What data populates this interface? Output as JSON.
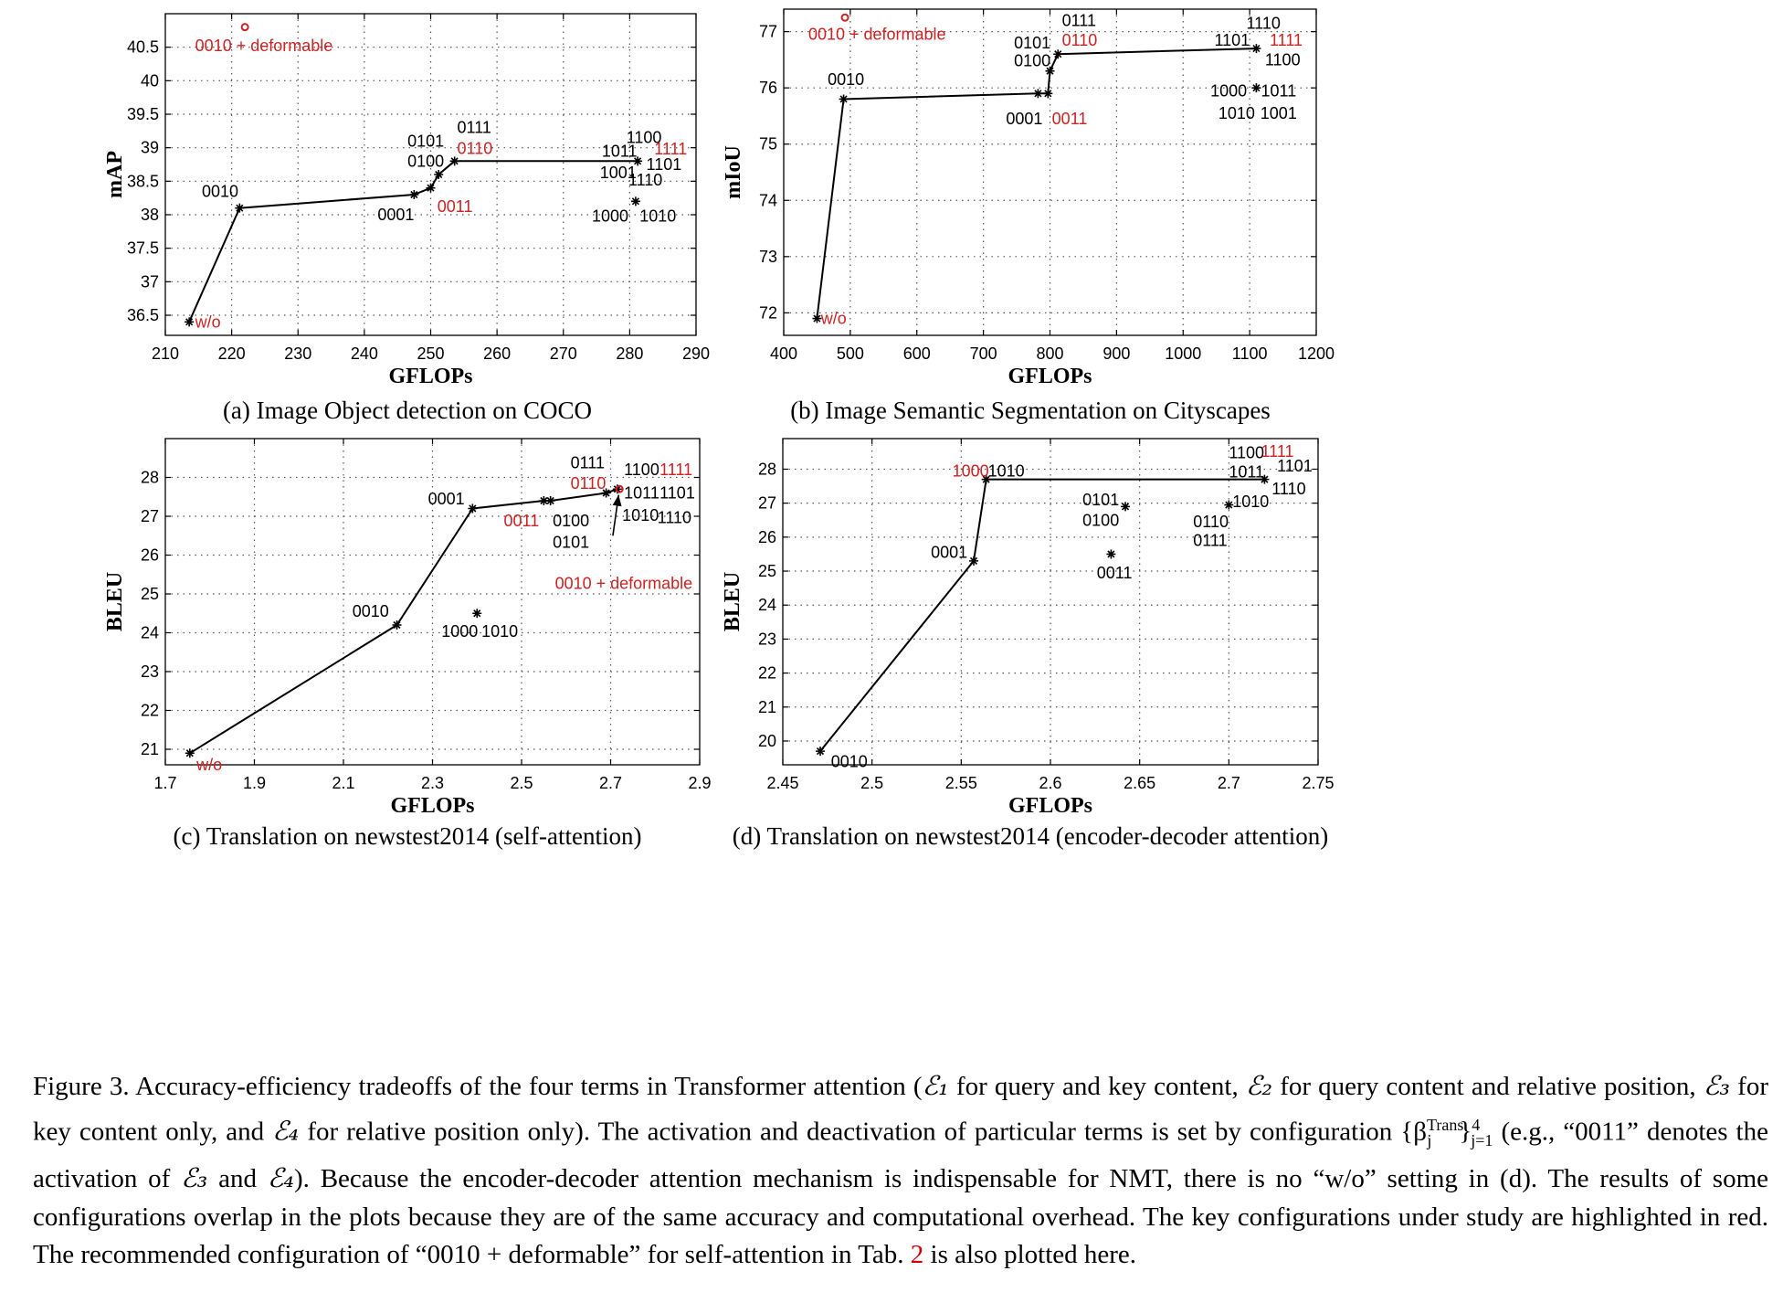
{
  "colors": {
    "red": "#cc2222",
    "black": "#000000",
    "grid": "#555555"
  },
  "chart_data": [
    {
      "type": "line",
      "caption": "(a)  Image Object detection on COCO",
      "xlabel": "GFLOPs",
      "ylabel": "mAP",
      "xlim": [
        210,
        290
      ],
      "ylim": [
        36.2,
        41.0
      ],
      "xticks": [
        210,
        220,
        230,
        240,
        250,
        260,
        270,
        280,
        290
      ],
      "yticks": [
        36.5,
        37,
        37.5,
        38,
        38.5,
        39,
        39.5,
        40,
        40.5
      ],
      "ytick_labels": [
        "36.5",
        "37",
        "37.5",
        "38",
        "38.5",
        "39",
        "39.5",
        "40",
        "40.5"
      ],
      "grid": true,
      "frontier": [
        [
          213.6,
          36.4
        ],
        [
          221.2,
          38.1
        ],
        [
          247.5,
          38.3
        ],
        [
          250.0,
          38.4
        ],
        [
          251.2,
          38.6
        ],
        [
          253.6,
          38.8
        ],
        [
          281.2,
          38.8
        ]
      ],
      "points": [
        [
          213.6,
          36.4
        ],
        [
          221.2,
          38.1
        ],
        [
          247.5,
          38.3
        ],
        [
          250.0,
          38.4
        ],
        [
          251.2,
          38.6
        ],
        [
          253.6,
          38.8
        ],
        [
          281.2,
          38.8
        ],
        [
          280.9,
          38.2
        ]
      ],
      "circle_points": [
        [
          222.0,
          40.8
        ]
      ],
      "labels": [
        {
          "text": "0010 + deformable",
          "x": 214.5,
          "y": 40.52,
          "red": true
        },
        {
          "text": "w/o",
          "x": 214.5,
          "y": 36.4,
          "red": true
        },
        {
          "text": "0010",
          "x": 215.5,
          "y": 38.35,
          "red": false
        },
        {
          "text": "0001",
          "x": 242.0,
          "y": 38.0,
          "red": false
        },
        {
          "text": "0011",
          "x": 251.0,
          "y": 38.12,
          "red": true
        },
        {
          "text": "0101",
          "x": 246.5,
          "y": 39.1,
          "red": false
        },
        {
          "text": "0100",
          "x": 246.5,
          "y": 38.8,
          "red": false
        },
        {
          "text": "0111",
          "x": 254.0,
          "y": 39.3,
          "red": false
        },
        {
          "text": "0110",
          "x": 254.0,
          "y": 38.99,
          "red": true
        },
        {
          "text": "1100",
          "x": 279.5,
          "y": 39.15,
          "red": false
        },
        {
          "text": "1011",
          "x": 275.8,
          "y": 38.95,
          "red": false
        },
        {
          "text": "1111",
          "x": 283.7,
          "y": 38.98,
          "red": true
        },
        {
          "text": "1001",
          "x": 275.5,
          "y": 38.63,
          "red": false
        },
        {
          "text": "1101",
          "x": 282.5,
          "y": 38.75,
          "red": false
        },
        {
          "text": "1110",
          "x": 279.8,
          "y": 38.52,
          "red": false
        },
        {
          "text": "1000",
          "x": 274.3,
          "y": 37.98,
          "red": false
        },
        {
          "text": "1010",
          "x": 281.5,
          "y": 37.98,
          "red": false
        }
      ]
    },
    {
      "type": "line",
      "caption": "(b)  Image Semantic Segmentation on Cityscapes",
      "xlabel": "GFLOPs",
      "ylabel": "mIoU",
      "xlim": [
        400,
        1200
      ],
      "ylim": [
        71.6,
        77.4
      ],
      "xticks": [
        400,
        500,
        600,
        700,
        800,
        900,
        1000,
        1100,
        1200
      ],
      "yticks": [
        72,
        73,
        74,
        75,
        76,
        77
      ],
      "ytick_labels": [
        "72",
        "73",
        "74",
        "75",
        "76",
        "77"
      ],
      "grid": true,
      "frontier": [
        [
          450,
          71.9
        ],
        [
          490,
          75.8
        ],
        [
          782,
          75.9
        ],
        [
          797,
          75.9
        ],
        [
          800,
          76.3
        ],
        [
          812,
          76.6
        ],
        [
          1110,
          76.7
        ]
      ],
      "points": [
        [
          450,
          71.9
        ],
        [
          490,
          75.8
        ],
        [
          782,
          75.9
        ],
        [
          797,
          75.9
        ],
        [
          800,
          76.3
        ],
        [
          812,
          76.6
        ],
        [
          1110,
          76.7
        ],
        [
          1110,
          76.0
        ]
      ],
      "circle_points": [
        [
          492,
          77.25
        ]
      ],
      "labels": [
        {
          "text": "0010 + deformable",
          "x": 437,
          "y": 76.95,
          "red": true
        },
        {
          "text": "w/o",
          "x": 456,
          "y": 71.9,
          "red": true
        },
        {
          "text": "0010",
          "x": 466,
          "y": 76.15,
          "red": false
        },
        {
          "text": "0001",
          "x": 734,
          "y": 75.45,
          "red": false
        },
        {
          "text": "0011",
          "x": 803,
          "y": 75.45,
          "red": true
        },
        {
          "text": "0101",
          "x": 746,
          "y": 76.8,
          "red": false
        },
        {
          "text": "0100",
          "x": 746,
          "y": 76.48,
          "red": false
        },
        {
          "text": "0111",
          "x": 818,
          "y": 77.2,
          "red": false
        },
        {
          "text": "0110",
          "x": 818,
          "y": 76.85,
          "red": true
        },
        {
          "text": "1110",
          "x": 1095,
          "y": 77.15,
          "red": false
        },
        {
          "text": "1101",
          "x": 1047,
          "y": 76.85,
          "red": false
        },
        {
          "text": "1111",
          "x": 1130,
          "y": 76.85,
          "red": true
        },
        {
          "text": "1100",
          "x": 1123,
          "y": 76.5,
          "red": false
        },
        {
          "text": "1000",
          "x": 1041,
          "y": 75.95,
          "red": false
        },
        {
          "text": "1011",
          "x": 1117,
          "y": 75.95,
          "red": false
        },
        {
          "text": "1010",
          "x": 1053,
          "y": 75.55,
          "red": false
        },
        {
          "text": "1001",
          "x": 1116,
          "y": 75.55,
          "red": false
        }
      ]
    },
    {
      "type": "line",
      "caption": "(c)  Translation on newstest2014 (self-attention)",
      "xlabel": "GFLOPs",
      "ylabel": "BLEU",
      "xlim": [
        1.7,
        2.9
      ],
      "ylim": [
        20.6,
        29.0
      ],
      "xticks": [
        1.7,
        1.9,
        2.1,
        2.3,
        2.5,
        2.7,
        2.9
      ],
      "yticks": [
        21,
        22,
        23,
        24,
        25,
        26,
        27,
        28
      ],
      "ytick_labels": [
        "21",
        "22",
        "23",
        "24",
        "25",
        "26",
        "27",
        "28"
      ],
      "grid": true,
      "frontier": [
        [
          1.755,
          20.9
        ],
        [
          2.22,
          24.2
        ],
        [
          2.39,
          27.2
        ],
        [
          2.55,
          27.4
        ],
        [
          2.565,
          27.4
        ],
        [
          2.69,
          27.6
        ],
        [
          2.715,
          27.7
        ]
      ],
      "points": [
        [
          1.755,
          20.9
        ],
        [
          2.22,
          24.2
        ],
        [
          2.39,
          27.2
        ],
        [
          2.55,
          27.4
        ],
        [
          2.565,
          27.4
        ],
        [
          2.69,
          27.6
        ],
        [
          2.715,
          27.7
        ],
        [
          2.4,
          24.5
        ]
      ],
      "circle_points": [
        [
          2.72,
          27.7
        ]
      ],
      "arrow": {
        "from": [
          2.705,
          26.5
        ],
        "to": [
          2.718,
          27.55
        ]
      },
      "labels": [
        {
          "text": "w/o",
          "x": 1.77,
          "y": 20.6,
          "red": true
        },
        {
          "text": "0010",
          "x": 2.12,
          "y": 24.55,
          "red": false
        },
        {
          "text": "0001",
          "x": 2.29,
          "y": 27.45,
          "red": false
        },
        {
          "text": "0011",
          "x": 2.46,
          "y": 26.88,
          "red": true
        },
        {
          "text": "0100",
          "x": 2.57,
          "y": 26.88,
          "red": false
        },
        {
          "text": "0101",
          "x": 2.57,
          "y": 26.33,
          "red": false
        },
        {
          "text": "0111",
          "x": 2.61,
          "y": 28.38,
          "red": false
        },
        {
          "text": "0110",
          "x": 2.61,
          "y": 27.85,
          "red": true
        },
        {
          "text": "1100",
          "x": 2.73,
          "y": 28.2,
          "red": false
        },
        {
          "text": "1111",
          "x": 2.81,
          "y": 28.2,
          "red": true
        },
        {
          "text": "1011",
          "x": 2.73,
          "y": 27.6,
          "red": false
        },
        {
          "text": "1101",
          "x": 2.81,
          "y": 27.6,
          "red": false
        },
        {
          "text": "1010",
          "x": 2.726,
          "y": 27.02,
          "red": false
        },
        {
          "text": "1110",
          "x": 2.805,
          "y": 26.97,
          "red": false
        },
        {
          "text": "0010 + deformable",
          "x": 2.575,
          "y": 25.27,
          "red": true
        },
        {
          "text": "1000",
          "x": 2.32,
          "y": 24.03,
          "red": false
        },
        {
          "text": "1010",
          "x": 2.41,
          "y": 24.03,
          "red": false
        }
      ]
    },
    {
      "type": "line",
      "caption": "(d)  Translation on newstest2014 (encoder-decoder attention)",
      "xlabel": "GFLOPs",
      "ylabel": "BLEU",
      "xlim": [
        2.45,
        2.75
      ],
      "ylim": [
        19.3,
        28.9
      ],
      "xticks": [
        2.45,
        2.5,
        2.55,
        2.6,
        2.65,
        2.7,
        2.75
      ],
      "yticks": [
        20,
        21,
        22,
        23,
        24,
        25,
        26,
        27,
        28
      ],
      "ytick_labels": [
        "20",
        "21",
        "22",
        "23",
        "24",
        "25",
        "26",
        "27",
        "28"
      ],
      "grid": true,
      "frontier": [
        [
          2.471,
          19.7
        ],
        [
          2.557,
          25.3
        ],
        [
          2.564,
          27.7
        ],
        [
          2.72,
          27.7
        ]
      ],
      "points": [
        [
          2.471,
          19.7
        ],
        [
          2.557,
          25.3
        ],
        [
          2.564,
          27.7
        ],
        [
          2.72,
          27.7
        ],
        [
          2.642,
          26.9
        ],
        [
          2.634,
          25.5
        ],
        [
          2.7,
          26.95
        ]
      ],
      "circle_points": [],
      "labels": [
        {
          "text": "0010",
          "x": 2.477,
          "y": 19.4,
          "red": false
        },
        {
          "text": "0001",
          "x": 2.533,
          "y": 25.55,
          "red": false
        },
        {
          "text": "1000",
          "x": 2.545,
          "y": 27.95,
          "red": true
        },
        {
          "text": "1010",
          "x": 2.565,
          "y": 27.95,
          "red": false
        },
        {
          "text": "0101",
          "x": 2.618,
          "y": 27.1,
          "red": false
        },
        {
          "text": "0100",
          "x": 2.618,
          "y": 26.5,
          "red": false
        },
        {
          "text": "0011",
          "x": 2.626,
          "y": 24.95,
          "red": false
        },
        {
          "text": "0110",
          "x": 2.68,
          "y": 26.45,
          "red": false
        },
        {
          "text": "0111",
          "x": 2.68,
          "y": 25.9,
          "red": false
        },
        {
          "text": "1100",
          "x": 2.7,
          "y": 28.48,
          "red": false
        },
        {
          "text": "1111",
          "x": 2.718,
          "y": 28.52,
          "red": true
        },
        {
          "text": "1011",
          "x": 2.7,
          "y": 27.92,
          "red": false
        },
        {
          "text": "1101",
          "x": 2.727,
          "y": 28.1,
          "red": false
        },
        {
          "text": "1110",
          "x": 2.724,
          "y": 27.42,
          "red": false
        },
        {
          "text": "1010",
          "x": 2.702,
          "y": 27.05,
          "red": false
        }
      ]
    }
  ],
  "caption": {
    "p1": "Figure 3. Accuracy-efficiency tradeoffs of the four terms in Transformer attention (",
    "e1": "ℰ₁",
    "p2": " for query and key content, ",
    "e2": "ℰ₂",
    "p3": " for query content and relative position, ",
    "e3": "ℰ₃",
    "p4": " for key content only, and ",
    "e4": "ℰ₄",
    "p5": " for relative position only). The activation and deactivation of particular terms is set by configuration {β",
    "beta_sup": "Trans",
    "beta_sub": "j",
    "p6": "}",
    "range_sup": "4",
    "range_sub": "j=1",
    "p7": " (e.g., “0011” denotes the activation of ",
    "e3b": "ℰ₃",
    "p8": " and ",
    "e4b": "ℰ₄",
    "p9": "). Because the encoder-decoder attention mechanism is indispensable for NMT, there is no “w/o” setting in (d). The results of some configurations overlap in the plots because they are of the same accuracy and computational overhead. The key configurations under study are highlighted in red. The recommended configuration of “0010 + deformable” for self-attention in Tab. ",
    "ref": "2",
    "p10": " is also plotted here."
  }
}
